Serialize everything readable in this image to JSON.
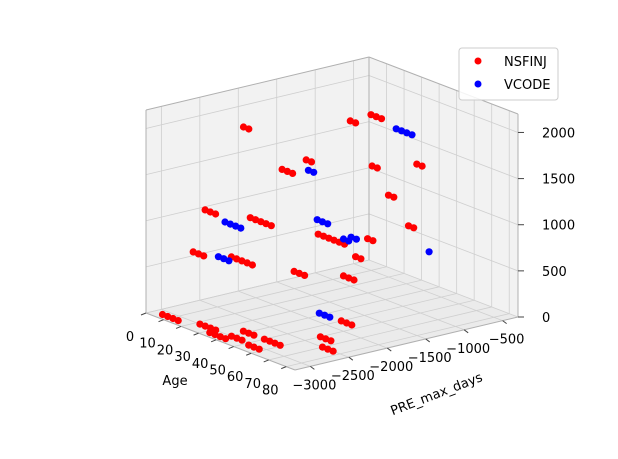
{
  "chart_data": {
    "type": "scatter",
    "projection": "3d",
    "xlabel": "Age",
    "ylabel": "PRE_max_days",
    "zlabel": "",
    "xlim": [
      0,
      85
    ],
    "ylim": [
      -3200,
      -300
    ],
    "zlim": [
      0,
      2200
    ],
    "xticks": [
      "0",
      "10",
      "20",
      "30",
      "40",
      "50",
      "60",
      "70",
      "80"
    ],
    "yticks": [
      "−3000",
      "−2500",
      "−2000",
      "−1500",
      "−1000",
      "−500"
    ],
    "zticks": [
      "0",
      "500",
      "1000",
      "1500",
      "2000"
    ],
    "xtick_values": [
      0,
      10,
      20,
      30,
      40,
      50,
      60,
      70,
      80
    ],
    "ytick_values": [
      -3000,
      -2500,
      -2000,
      -1500,
      -1000,
      -500
    ],
    "ztick_values": [
      0,
      500,
      1000,
      1500,
      2000
    ],
    "grid": true,
    "legend_position": "top-right",
    "series": [
      {
        "name": "NSFINJ",
        "color": "#ff0000",
        "points": [
          [
            5,
            -3100,
            0
          ],
          [
            8,
            -3100,
            0
          ],
          [
            11,
            -3100,
            0
          ],
          [
            14,
            -3100,
            0
          ],
          [
            22,
            -3000,
            0
          ],
          [
            25,
            -3000,
            0
          ],
          [
            28,
            -3000,
            0
          ],
          [
            31,
            -3000,
            0
          ],
          [
            32,
            -3100,
            0
          ],
          [
            35,
            -3100,
            0
          ],
          [
            38,
            -3100,
            0
          ],
          [
            41,
            -3100,
            0
          ],
          [
            40,
            -3000,
            0
          ],
          [
            43,
            -3000,
            0
          ],
          [
            46,
            -3000,
            0
          ],
          [
            52,
            -3050,
            0
          ],
          [
            55,
            -3050,
            0
          ],
          [
            58,
            -3050,
            0
          ],
          [
            38,
            -2800,
            0
          ],
          [
            41,
            -2800,
            0
          ],
          [
            44,
            -2800,
            0
          ],
          [
            50,
            -2800,
            0
          ],
          [
            53,
            -2800,
            0
          ],
          [
            56,
            -2800,
            0
          ],
          [
            59,
            -2800,
            0
          ],
          [
            70,
            -2500,
            0
          ],
          [
            73,
            -2500,
            0
          ],
          [
            76,
            -2500,
            0
          ],
          [
            60,
            -2300,
            0
          ],
          [
            63,
            -2300,
            0
          ],
          [
            66,
            -2300,
            0
          ],
          [
            50,
            -1800,
            0
          ],
          [
            53,
            -1800,
            0
          ],
          [
            56,
            -1800,
            0
          ],
          [
            5,
            -2700,
            600
          ],
          [
            8,
            -2700,
            600
          ],
          [
            11,
            -2700,
            600
          ],
          [
            18,
            -2500,
            600
          ],
          [
            21,
            -2500,
            600
          ],
          [
            24,
            -2500,
            600
          ],
          [
            27,
            -2500,
            600
          ],
          [
            30,
            -2500,
            600
          ],
          [
            45,
            -2300,
            600
          ],
          [
            48,
            -2300,
            600
          ],
          [
            51,
            -2300,
            600
          ],
          [
            60,
            -2000,
            600
          ],
          [
            63,
            -2000,
            600
          ],
          [
            66,
            -2000,
            600
          ],
          [
            45,
            -1500,
            600
          ],
          [
            48,
            -1500,
            600
          ],
          [
            3,
            -2500,
            1000
          ],
          [
            6,
            -2500,
            1000
          ],
          [
            9,
            -2500,
            1000
          ],
          [
            20,
            -2300,
            1000
          ],
          [
            23,
            -2300,
            1000
          ],
          [
            26,
            -2300,
            1000
          ],
          [
            29,
            -2300,
            1000
          ],
          [
            32,
            -2300,
            1000
          ],
          [
            50,
            -2100,
            1000
          ],
          [
            53,
            -2100,
            1000
          ],
          [
            56,
            -2100,
            1000
          ],
          [
            59,
            -2100,
            1000
          ],
          [
            62,
            -2100,
            1000
          ],
          [
            65,
            -2100,
            1000
          ],
          [
            65,
            -1800,
            1000
          ],
          [
            68,
            -1800,
            1000
          ],
          [
            62,
            -1200,
            1000
          ],
          [
            65,
            -1200,
            1000
          ],
          [
            25,
            -2000,
            1500
          ],
          [
            28,
            -2000,
            1500
          ],
          [
            31,
            -2000,
            1500
          ],
          [
            30,
            -1800,
            1600
          ],
          [
            33,
            -1800,
            1600
          ],
          [
            50,
            -1400,
            1600
          ],
          [
            53,
            -1400,
            1600
          ],
          [
            58,
            -1000,
            1600
          ],
          [
            61,
            -1000,
            1600
          ],
          [
            55,
            -1300,
            1300
          ],
          [
            58,
            -1300,
            1300
          ],
          [
            3,
            -2000,
            1800
          ],
          [
            6,
            -2000,
            1800
          ],
          [
            45,
            -1300,
            2100
          ],
          [
            48,
            -1300,
            2100
          ],
          [
            51,
            -1300,
            2100
          ],
          [
            42,
            -1500,
            2050
          ],
          [
            45,
            -1500,
            2050
          ]
        ]
      },
      {
        "name": "VCODE",
        "color": "#0000ff",
        "points": [
          [
            10,
            -2400,
            900
          ],
          [
            13,
            -2400,
            900
          ],
          [
            16,
            -2400,
            900
          ],
          [
            19,
            -2400,
            900
          ],
          [
            15,
            -2600,
            600
          ],
          [
            18,
            -2600,
            600
          ],
          [
            21,
            -2600,
            600
          ],
          [
            45,
            -2000,
            1100
          ],
          [
            48,
            -2000,
            1100
          ],
          [
            51,
            -2000,
            1100
          ],
          [
            60,
            -2000,
            1000
          ],
          [
            63,
            -2000,
            1000
          ],
          [
            60,
            -1900,
            1000
          ],
          [
            63,
            -1900,
            1000
          ],
          [
            40,
            -2000,
            1600
          ],
          [
            43,
            -2000,
            1600
          ],
          [
            55,
            -1200,
            2000
          ],
          [
            58,
            -1200,
            2000
          ],
          [
            61,
            -1200,
            2000
          ],
          [
            64,
            -1200,
            2000
          ],
          [
            55,
            -2200,
            200
          ],
          [
            58,
            -2200,
            200
          ],
          [
            61,
            -2200,
            200
          ],
          [
            65,
            -1000,
            700
          ]
        ]
      }
    ]
  }
}
